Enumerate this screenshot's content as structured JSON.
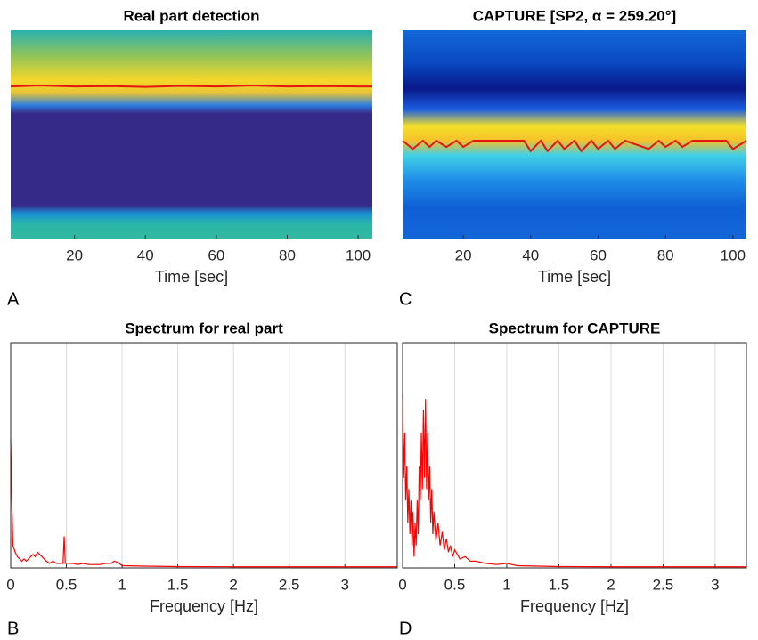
{
  "chart_data": [
    {
      "type": "heatmap",
      "title": "Real part detection",
      "panel_label": "A",
      "x_label": "Time [sec]",
      "colormap": "parula",
      "xlim": [
        2,
        104
      ],
      "xticks": [
        20,
        40,
        60,
        80,
        100
      ],
      "ylim": [
        0,
        1
      ],
      "grid": false,
      "x": [
        2,
        10,
        20,
        30,
        40,
        50,
        60,
        70,
        80,
        90,
        100,
        104
      ],
      "series": [
        {
          "color": "#e3170a",
          "values": [
            0.73,
            0.735,
            0.73,
            0.732,
            0.728,
            0.733,
            0.73,
            0.735,
            0.73,
            0.732,
            0.73,
            0.73
          ]
        }
      ]
    },
    {
      "type": "line",
      "title": "Spectrum for real part",
      "panel_label": "B",
      "x_label": "Frequency [Hz]",
      "xlim": [
        0,
        3.47
      ],
      "xticks": [
        0,
        0.5,
        1,
        1.5,
        2,
        2.5,
        3
      ],
      "ylim": [
        0,
        1
      ],
      "grid": true,
      "x": [
        0,
        0.01,
        0.02,
        0.04,
        0.06,
        0.08,
        0.1,
        0.12,
        0.14,
        0.16,
        0.18,
        0.2,
        0.22,
        0.24,
        0.26,
        0.28,
        0.3,
        0.32,
        0.35,
        0.38,
        0.41,
        0.44,
        0.47,
        0.48,
        0.49,
        0.52,
        0.56,
        0.6,
        0.65,
        0.7,
        0.75,
        0.8,
        0.85,
        0.9,
        0.93,
        0.96,
        1,
        1.2,
        1.5,
        2,
        2.5,
        3,
        3.47
      ],
      "series": [
        {
          "color": "#ff0000",
          "values": [
            0.57,
            0.3,
            0.1,
            0.07,
            0.05,
            0.04,
            0.03,
            0.04,
            0.03,
            0.04,
            0.05,
            0.06,
            0.05,
            0.07,
            0.06,
            0.05,
            0.04,
            0.03,
            0.02,
            0.03,
            0.02,
            0.02,
            0.02,
            0.14,
            0.02,
            0.02,
            0.02,
            0.015,
            0.02,
            0.015,
            0.015,
            0.015,
            0.02,
            0.02,
            0.03,
            0.025,
            0.01,
            0.008,
            0.006,
            0.005,
            0.005,
            0.005,
            0.005
          ]
        }
      ]
    },
    {
      "type": "heatmap",
      "title": "CAPTURE [SP2, α = 259.20°]",
      "panel_label": "C",
      "x_label": "Time [sec]",
      "colormap": "jet",
      "xlim": [
        2,
        104
      ],
      "xticks": [
        20,
        40,
        60,
        80,
        100
      ],
      "ylim": [
        0,
        1
      ],
      "grid": false,
      "x": [
        2,
        5,
        8,
        10,
        12,
        15,
        18,
        20,
        23,
        30,
        38,
        40,
        43,
        45,
        48,
        50,
        53,
        55,
        58,
        60,
        63,
        65,
        68,
        75,
        78,
        80,
        83,
        85,
        88,
        95,
        98,
        100,
        104
      ],
      "series": [
        {
          "color": "#e3170a",
          "values": [
            0.47,
            0.43,
            0.47,
            0.44,
            0.47,
            0.44,
            0.47,
            0.44,
            0.47,
            0.47,
            0.47,
            0.42,
            0.47,
            0.42,
            0.47,
            0.43,
            0.47,
            0.42,
            0.47,
            0.43,
            0.47,
            0.43,
            0.47,
            0.43,
            0.47,
            0.44,
            0.47,
            0.44,
            0.47,
            0.47,
            0.47,
            0.43,
            0.47
          ]
        }
      ]
    },
    {
      "type": "line",
      "title": "Spectrum for CAPTURE",
      "panel_label": "D",
      "x_label": "Frequency [Hz]",
      "xlim": [
        0,
        3.3
      ],
      "xticks": [
        0,
        0.5,
        1,
        1.5,
        2,
        2.5,
        3
      ],
      "ylim": [
        0,
        1
      ],
      "grid": true,
      "x": [
        0,
        0.01,
        0.02,
        0.03,
        0.04,
        0.05,
        0.06,
        0.07,
        0.08,
        0.09,
        0.1,
        0.11,
        0.12,
        0.13,
        0.14,
        0.15,
        0.16,
        0.17,
        0.18,
        0.19,
        0.2,
        0.21,
        0.22,
        0.23,
        0.24,
        0.25,
        0.26,
        0.27,
        0.28,
        0.29,
        0.3,
        0.32,
        0.34,
        0.36,
        0.38,
        0.4,
        0.42,
        0.44,
        0.46,
        0.48,
        0.5,
        0.55,
        0.6,
        0.65,
        0.7,
        0.8,
        0.9,
        1,
        1.1,
        1.5,
        2,
        2.5,
        3,
        3.3
      ],
      "series": [
        {
          "color": "#ff0000",
          "values": [
            0.77,
            0.4,
            0.6,
            0.3,
            0.45,
            0.2,
            0.35,
            0.15,
            0.3,
            0.1,
            0.25,
            0.05,
            0.2,
            0.1,
            0.3,
            0.15,
            0.45,
            0.3,
            0.6,
            0.35,
            0.7,
            0.4,
            0.75,
            0.35,
            0.6,
            0.3,
            0.45,
            0.2,
            0.35,
            0.15,
            0.25,
            0.12,
            0.2,
            0.1,
            0.16,
            0.08,
            0.13,
            0.07,
            0.1,
            0.05,
            0.08,
            0.04,
            0.05,
            0.03,
            0.03,
            0.02,
            0.015,
            0.02,
            0.01,
            0.006,
            0.005,
            0.005,
            0.005,
            0.005
          ]
        }
      ]
    }
  ]
}
